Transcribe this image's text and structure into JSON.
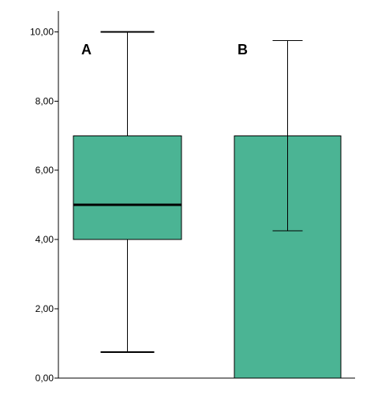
{
  "chart_data": {
    "type": "box-and-bar",
    "ylim": [
      0,
      10.6
    ],
    "y_ticks": [
      {
        "value": 0,
        "label": "0,00"
      },
      {
        "value": 2,
        "label": "2,00"
      },
      {
        "value": 4,
        "label": "4,00"
      },
      {
        "value": 6,
        "label": "6,00"
      },
      {
        "value": 8,
        "label": "8,00"
      },
      {
        "value": 10,
        "label": "10,00"
      }
    ],
    "grid": false,
    "legend": "none",
    "fill_color": "#4bb494",
    "edge_color": "#000000",
    "groups": [
      {
        "label": "A",
        "kind": "boxplot",
        "whisker_low": 0.75,
        "q1": 4.0,
        "median": 5.0,
        "q3": 7.0,
        "whisker_high": 10.0
      },
      {
        "label": "B",
        "kind": "bar-with-error",
        "value": 7.0,
        "error_low": 4.25,
        "error_high": 9.75
      }
    ]
  }
}
